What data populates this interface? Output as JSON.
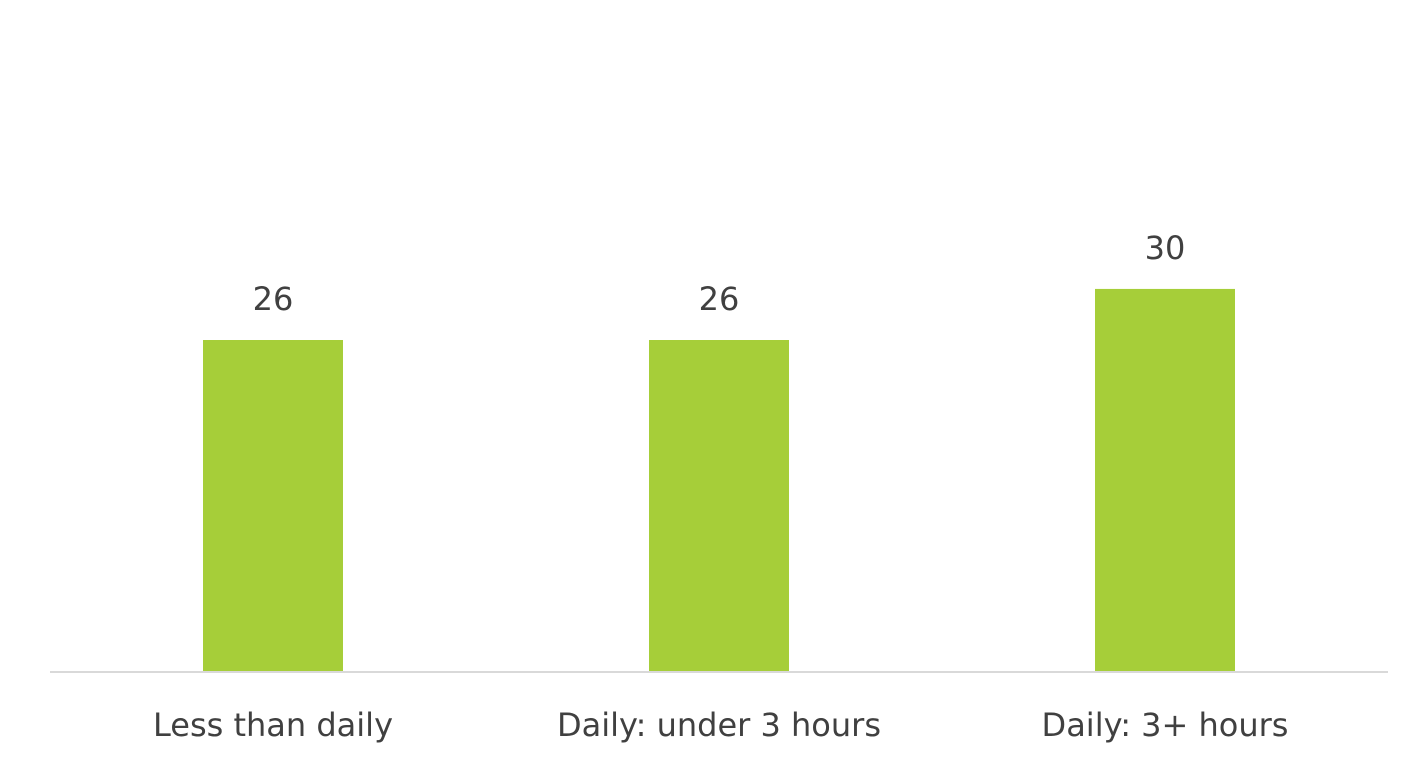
{
  "chart_data": {
    "type": "bar",
    "title": "",
    "xlabel": "",
    "ylabel": "",
    "categories": [
      "Less than daily",
      "Daily: under 3 hours",
      "Daily: 3+ hours"
    ],
    "values": [
      26,
      26,
      30
    ],
    "ylim": [
      0,
      52
    ],
    "grid": false,
    "legend": "none",
    "bar_color": "#a6ce39",
    "axis_color": "#d9d9d9",
    "text_color": "#404040"
  }
}
